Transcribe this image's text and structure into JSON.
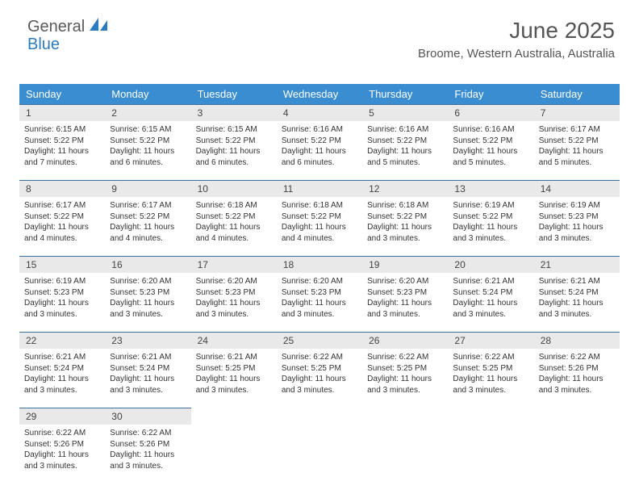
{
  "logo": {
    "general": "General",
    "blue": "Blue"
  },
  "title": "June 2025",
  "location": "Broome, Western Australia, Australia",
  "colors": {
    "header_bg": "#3a8dd0",
    "header_text": "#ffffff",
    "daynum_bg": "#e9e9e9",
    "daynum_border": "#3a6fa0",
    "text": "#333333",
    "title_text": "#555555",
    "logo_general": "#5a5a5a",
    "logo_blue": "#2b7bbf"
  },
  "weekdays": [
    "Sunday",
    "Monday",
    "Tuesday",
    "Wednesday",
    "Thursday",
    "Friday",
    "Saturday"
  ],
  "weeks": [
    [
      {
        "n": "1",
        "sr": "Sunrise: 6:15 AM",
        "ss": "Sunset: 5:22 PM",
        "dl": "Daylight: 11 hours and 7 minutes."
      },
      {
        "n": "2",
        "sr": "Sunrise: 6:15 AM",
        "ss": "Sunset: 5:22 PM",
        "dl": "Daylight: 11 hours and 6 minutes."
      },
      {
        "n": "3",
        "sr": "Sunrise: 6:15 AM",
        "ss": "Sunset: 5:22 PM",
        "dl": "Daylight: 11 hours and 6 minutes."
      },
      {
        "n": "4",
        "sr": "Sunrise: 6:16 AM",
        "ss": "Sunset: 5:22 PM",
        "dl": "Daylight: 11 hours and 6 minutes."
      },
      {
        "n": "5",
        "sr": "Sunrise: 6:16 AM",
        "ss": "Sunset: 5:22 PM",
        "dl": "Daylight: 11 hours and 5 minutes."
      },
      {
        "n": "6",
        "sr": "Sunrise: 6:16 AM",
        "ss": "Sunset: 5:22 PM",
        "dl": "Daylight: 11 hours and 5 minutes."
      },
      {
        "n": "7",
        "sr": "Sunrise: 6:17 AM",
        "ss": "Sunset: 5:22 PM",
        "dl": "Daylight: 11 hours and 5 minutes."
      }
    ],
    [
      {
        "n": "8",
        "sr": "Sunrise: 6:17 AM",
        "ss": "Sunset: 5:22 PM",
        "dl": "Daylight: 11 hours and 4 minutes."
      },
      {
        "n": "9",
        "sr": "Sunrise: 6:17 AM",
        "ss": "Sunset: 5:22 PM",
        "dl": "Daylight: 11 hours and 4 minutes."
      },
      {
        "n": "10",
        "sr": "Sunrise: 6:18 AM",
        "ss": "Sunset: 5:22 PM",
        "dl": "Daylight: 11 hours and 4 minutes."
      },
      {
        "n": "11",
        "sr": "Sunrise: 6:18 AM",
        "ss": "Sunset: 5:22 PM",
        "dl": "Daylight: 11 hours and 4 minutes."
      },
      {
        "n": "12",
        "sr": "Sunrise: 6:18 AM",
        "ss": "Sunset: 5:22 PM",
        "dl": "Daylight: 11 hours and 3 minutes."
      },
      {
        "n": "13",
        "sr": "Sunrise: 6:19 AM",
        "ss": "Sunset: 5:22 PM",
        "dl": "Daylight: 11 hours and 3 minutes."
      },
      {
        "n": "14",
        "sr": "Sunrise: 6:19 AM",
        "ss": "Sunset: 5:23 PM",
        "dl": "Daylight: 11 hours and 3 minutes."
      }
    ],
    [
      {
        "n": "15",
        "sr": "Sunrise: 6:19 AM",
        "ss": "Sunset: 5:23 PM",
        "dl": "Daylight: 11 hours and 3 minutes."
      },
      {
        "n": "16",
        "sr": "Sunrise: 6:20 AM",
        "ss": "Sunset: 5:23 PM",
        "dl": "Daylight: 11 hours and 3 minutes."
      },
      {
        "n": "17",
        "sr": "Sunrise: 6:20 AM",
        "ss": "Sunset: 5:23 PM",
        "dl": "Daylight: 11 hours and 3 minutes."
      },
      {
        "n": "18",
        "sr": "Sunrise: 6:20 AM",
        "ss": "Sunset: 5:23 PM",
        "dl": "Daylight: 11 hours and 3 minutes."
      },
      {
        "n": "19",
        "sr": "Sunrise: 6:20 AM",
        "ss": "Sunset: 5:23 PM",
        "dl": "Daylight: 11 hours and 3 minutes."
      },
      {
        "n": "20",
        "sr": "Sunrise: 6:21 AM",
        "ss": "Sunset: 5:24 PM",
        "dl": "Daylight: 11 hours and 3 minutes."
      },
      {
        "n": "21",
        "sr": "Sunrise: 6:21 AM",
        "ss": "Sunset: 5:24 PM",
        "dl": "Daylight: 11 hours and 3 minutes."
      }
    ],
    [
      {
        "n": "22",
        "sr": "Sunrise: 6:21 AM",
        "ss": "Sunset: 5:24 PM",
        "dl": "Daylight: 11 hours and 3 minutes."
      },
      {
        "n": "23",
        "sr": "Sunrise: 6:21 AM",
        "ss": "Sunset: 5:24 PM",
        "dl": "Daylight: 11 hours and 3 minutes."
      },
      {
        "n": "24",
        "sr": "Sunrise: 6:21 AM",
        "ss": "Sunset: 5:25 PM",
        "dl": "Daylight: 11 hours and 3 minutes."
      },
      {
        "n": "25",
        "sr": "Sunrise: 6:22 AM",
        "ss": "Sunset: 5:25 PM",
        "dl": "Daylight: 11 hours and 3 minutes."
      },
      {
        "n": "26",
        "sr": "Sunrise: 6:22 AM",
        "ss": "Sunset: 5:25 PM",
        "dl": "Daylight: 11 hours and 3 minutes."
      },
      {
        "n": "27",
        "sr": "Sunrise: 6:22 AM",
        "ss": "Sunset: 5:25 PM",
        "dl": "Daylight: 11 hours and 3 minutes."
      },
      {
        "n": "28",
        "sr": "Sunrise: 6:22 AM",
        "ss": "Sunset: 5:26 PM",
        "dl": "Daylight: 11 hours and 3 minutes."
      }
    ],
    [
      {
        "n": "29",
        "sr": "Sunrise: 6:22 AM",
        "ss": "Sunset: 5:26 PM",
        "dl": "Daylight: 11 hours and 3 minutes."
      },
      {
        "n": "30",
        "sr": "Sunrise: 6:22 AM",
        "ss": "Sunset: 5:26 PM",
        "dl": "Daylight: 11 hours and 3 minutes."
      },
      null,
      null,
      null,
      null,
      null
    ]
  ]
}
